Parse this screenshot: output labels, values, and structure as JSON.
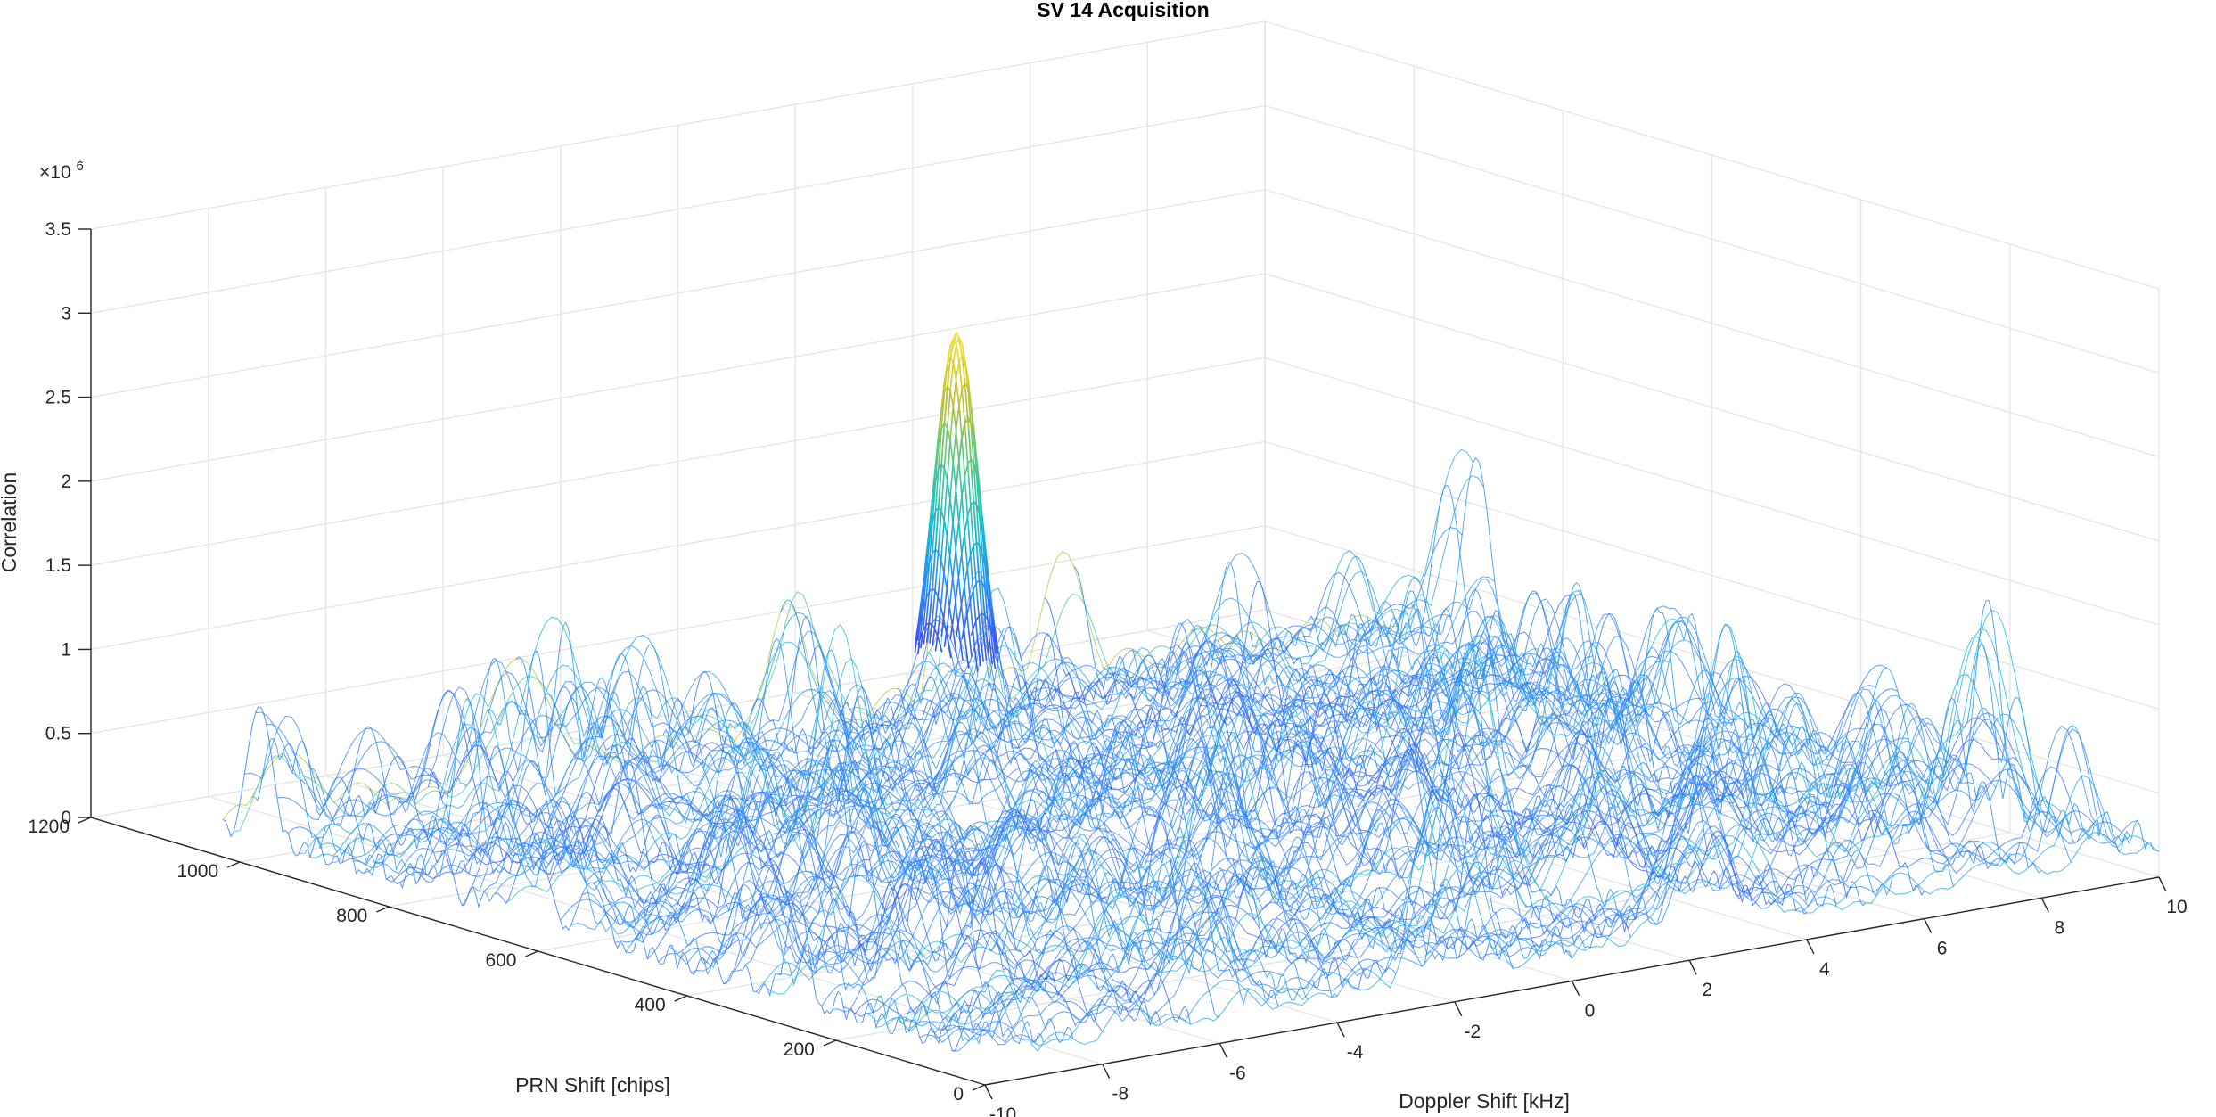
{
  "chart_data": {
    "type": "surface-mesh",
    "title": "SV 14 Acquisition",
    "xlabel": "Doppler Shift [kHz]",
    "ylabel": "PRN Shift [chips]",
    "zlabel": "Correlation",
    "z_exponent_label": "×10",
    "z_exponent_power": "6",
    "xlim": [
      -10,
      10
    ],
    "ylim": [
      0,
      1200
    ],
    "zlim": [
      0,
      3.5
    ],
    "x_ticks": [
      "-10",
      "-8",
      "-6",
      "-4",
      "-2",
      "0",
      "2",
      "4",
      "6",
      "8",
      "10"
    ],
    "y_ticks": [
      "0",
      "200",
      "400",
      "600",
      "800",
      "1000",
      "1200"
    ],
    "z_ticks": [
      "0",
      "0.5",
      "1",
      "1.5",
      "2",
      "2.5",
      "3",
      "3.5"
    ],
    "grid": true,
    "colormap": [
      "#3e26a8",
      "#4245e5",
      "#2c86f9",
      "#13bcd2",
      "#4dc989",
      "#c6c12e",
      "#f6e620"
    ],
    "noise_floor": 0.3,
    "noise_peaks_max": 1.6,
    "peak": {
      "doppler_khz": 2.5,
      "prn_chips": 1023,
      "correlation": 2.35
    },
    "doppler_resolution_khz": 0.5,
    "prn_span_chips": 1023
  }
}
